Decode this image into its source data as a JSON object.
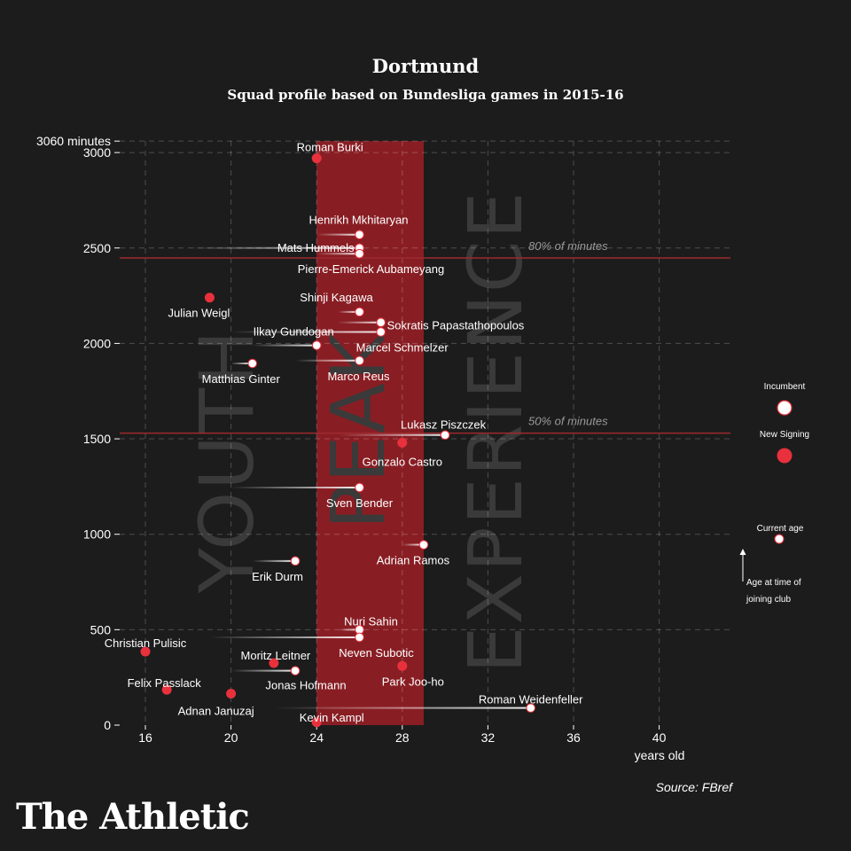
{
  "title": "Dortmund",
  "subtitle": "Squad profile based on Bundesliga games in 2015-16",
  "source": "Source: FBref",
  "brand": "The Athletic",
  "colors": {
    "background": "#1c1c1c",
    "peak_band": "#8e1f25",
    "new_signing": "#e8313c",
    "incumbent": "#ffffff",
    "threshold": "#9e2a2f"
  },
  "legend": {
    "incumbent": "Incumbent",
    "new_signing": "New Signing",
    "current_age": "Current age",
    "age_joined_1": "Age at time of",
    "age_joined_2": "joining club"
  },
  "chart_data": {
    "type": "scatter",
    "xlabel": "years old",
    "ylabel": "minutes",
    "xlim": [
      14.8,
      43.5
    ],
    "ylim": [
      0,
      3060
    ],
    "xticks": [
      16,
      20,
      24,
      28,
      32,
      36,
      40
    ],
    "yticks": [
      0,
      500,
      1000,
      1500,
      2000,
      2500,
      3000
    ],
    "max_label": "3060 minutes",
    "bands": [
      {
        "label": "YOUTH",
        "from": 14.8,
        "to": 24,
        "shaded": false
      },
      {
        "label": "PEAK",
        "from": 24,
        "to": 29,
        "shaded": true
      },
      {
        "label": "EXPERIENCE",
        "from": 29,
        "to": 43.5,
        "shaded": false
      }
    ],
    "thresholds": [
      {
        "label": "80% of minutes",
        "value": 2448
      },
      {
        "label": "50% of minutes",
        "value": 1530
      }
    ],
    "players": [
      {
        "name": "Roman Burki",
        "age": 24,
        "minutes": 2970,
        "type": "new",
        "joined_age": null
      },
      {
        "name": "Henrikh Mkhitaryan",
        "age": 26,
        "minutes": 2570,
        "type": "incumbent",
        "joined_age": 24
      },
      {
        "name": "Mats Hummels",
        "age": 26,
        "minutes": 2500,
        "type": "incumbent",
        "joined_age": 18
      },
      {
        "name": "Pierre-Emerick Aubameyang",
        "age": 26,
        "minutes": 2470,
        "type": "incumbent",
        "joined_age": 24
      },
      {
        "name": "Julian Weigl",
        "age": 19,
        "minutes": 2240,
        "type": "new",
        "joined_age": null
      },
      {
        "name": "Shinji Kagawa",
        "age": 26,
        "minutes": 2165,
        "type": "incumbent",
        "joined_age": 25
      },
      {
        "name": "Sokratis Papastathopoulos",
        "age": 27,
        "minutes": 2110,
        "type": "incumbent",
        "joined_age": 25
      },
      {
        "name": "Ilkay Gundogan",
        "age": 24,
        "minutes": 1990,
        "type": "incumbent",
        "joined_age": 21
      },
      {
        "name": "Marcel Schmelzer",
        "age": 27,
        "minutes": 2060,
        "type": "incumbent",
        "joined_age": 20
      },
      {
        "name": "Matthias Ginter",
        "age": 21,
        "minutes": 1895,
        "type": "incumbent",
        "joined_age": 20
      },
      {
        "name": "Marco Reus",
        "age": 26,
        "minutes": 1910,
        "type": "incumbent",
        "joined_age": 23
      },
      {
        "name": "Lukasz Piszczek",
        "age": 30,
        "minutes": 1520,
        "type": "incumbent",
        "joined_age": 25
      },
      {
        "name": "Gonzalo Castro",
        "age": 28,
        "minutes": 1480,
        "type": "new",
        "joined_age": null
      },
      {
        "name": "Sven Bender",
        "age": 26,
        "minutes": 1245,
        "type": "incumbent",
        "joined_age": 20
      },
      {
        "name": "Adrian Ramos",
        "age": 29,
        "minutes": 945,
        "type": "incumbent",
        "joined_age": 28
      },
      {
        "name": "Erik Durm",
        "age": 23,
        "minutes": 860,
        "type": "incumbent",
        "joined_age": 21
      },
      {
        "name": "Nuri Sahin",
        "age": 26,
        "minutes": 500,
        "type": "incumbent",
        "joined_age": 25
      },
      {
        "name": "Neven Subotic",
        "age": 26,
        "minutes": 460,
        "type": "incumbent",
        "joined_age": 19
      },
      {
        "name": "Christian Pulisic",
        "age": 16,
        "minutes": 385,
        "type": "new",
        "joined_age": null
      },
      {
        "name": "Moritz Leitner",
        "age": 22,
        "minutes": 325,
        "type": "new",
        "joined_age": null
      },
      {
        "name": "Park Joo-ho",
        "age": 28,
        "minutes": 310,
        "type": "new",
        "joined_age": null
      },
      {
        "name": "Jonas Hofmann",
        "age": 23,
        "minutes": 285,
        "type": "incumbent",
        "joined_age": 20
      },
      {
        "name": "Felix Passlack",
        "age": 17,
        "minutes": 185,
        "type": "new",
        "joined_age": null
      },
      {
        "name": "Adnan Januzaj",
        "age": 20,
        "minutes": 165,
        "type": "new",
        "joined_age": null
      },
      {
        "name": "Roman Weidenfeller",
        "age": 34,
        "minutes": 90,
        "type": "incumbent",
        "joined_age": 22
      },
      {
        "name": "Kevin Kampl",
        "age": 24,
        "minutes": 15,
        "type": "new",
        "joined_age": null
      }
    ]
  }
}
